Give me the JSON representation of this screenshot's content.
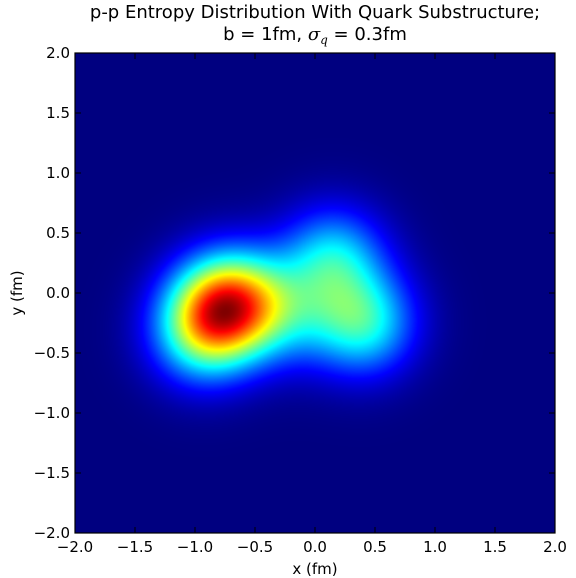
{
  "chart_data": {
    "type": "heatmap",
    "title_line1": "p-p Entropy Distribution With Quark Substructure;",
    "title_line2_prefix": "b = 1fm, ",
    "title_sigma": "σ",
    "title_sigma_sub": "q",
    "title_line2_suffix": " = 0.3fm",
    "xlabel": "x (fm)",
    "ylabel": "y (fm)",
    "xlim": [
      -2.0,
      2.0
    ],
    "ylim": [
      -2.0,
      2.0
    ],
    "xticks": [
      -2.0,
      -1.5,
      -1.0,
      -0.5,
      0.0,
      0.5,
      1.0,
      1.5,
      2.0
    ],
    "yticks": [
      -2.0,
      -1.5,
      -1.0,
      -0.5,
      0.0,
      0.5,
      1.0,
      1.5,
      2.0
    ],
    "xtick_labels": [
      "−2.0",
      "−1.5",
      "−1.0",
      "−0.5",
      "0.0",
      "0.5",
      "1.0",
      "1.5",
      "2.0"
    ],
    "ytick_labels": [
      "−2.0",
      "−1.5",
      "−1.0",
      "−0.5",
      "0.0",
      "0.5",
      "1.0",
      "1.5",
      "2.0"
    ],
    "colormap": "jet",
    "grid": false,
    "hotspots": [
      {
        "x": -0.78,
        "y": -0.12,
        "amplitude": 1.0
      },
      {
        "x": -0.95,
        "y": -0.35,
        "amplitude": 0.55
      },
      {
        "x": -0.55,
        "y": -0.05,
        "amplitude": 0.45
      },
      {
        "x": 0.4,
        "y": -0.25,
        "amplitude": 0.68
      },
      {
        "x": 0.15,
        "y": 0.28,
        "amplitude": 0.58
      },
      {
        "x": -0.2,
        "y": -0.2,
        "amplitude": 0.32
      }
    ],
    "quark_width_fm": 0.3
  }
}
